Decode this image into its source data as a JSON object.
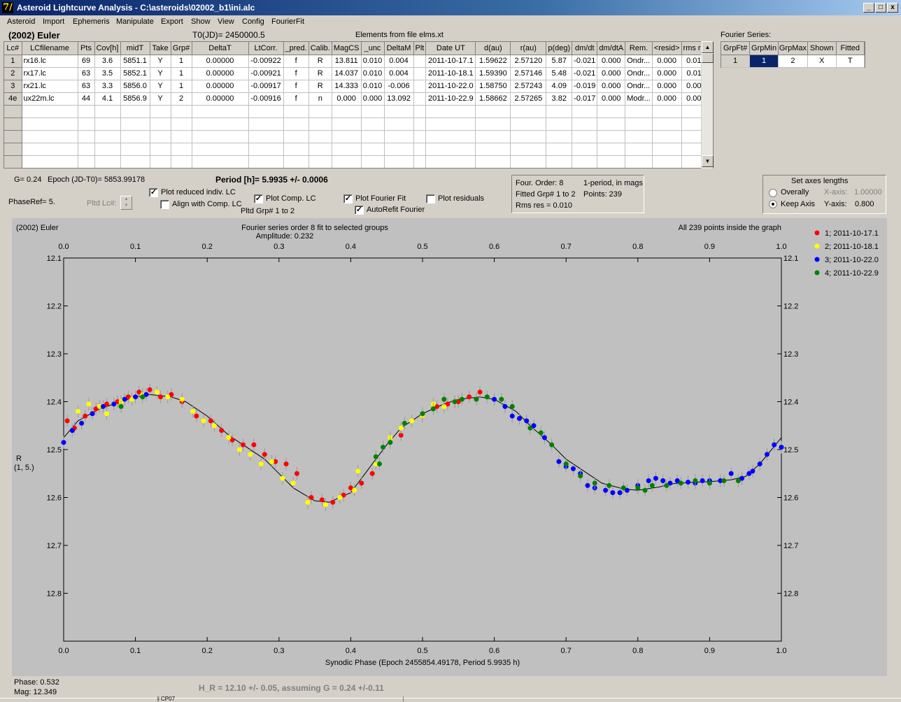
{
  "window": {
    "title": "Asteroid Lightcurve Analysis - C:\\asteroids\\02002_b1\\ini.alc",
    "icon_glyph": "7/",
    "buttons": [
      "_",
      "□",
      "x"
    ]
  },
  "menu": [
    "Asteroid",
    "Import",
    "Ephemeris",
    "Manipulate",
    "Export",
    "Show",
    "View",
    "Config",
    "FourierFit"
  ],
  "header": {
    "asteroid": "(2002) Euler",
    "t0": "T0(JD)= 2450000.5",
    "elements": "Elements from file elms.xt"
  },
  "grid": {
    "columns": [
      "Lc#",
      "LCfilename",
      "Pts",
      "Cov[h]",
      "midT",
      "Take",
      "Grp#",
      "DeltaT",
      "LtCorr.",
      "_pred.",
      "Calib.",
      "MagCS",
      "_unc",
      "DeltaM",
      "Plt",
      "Date UT",
      "d(au)",
      "r(au)",
      "p(deg)",
      "dm/dt",
      "dm/dtA",
      "Rem.",
      "<resid>",
      "rms res"
    ],
    "rows": [
      [
        "1",
        "rx16.lc",
        "69",
        "3.6",
        "5851.1",
        "Y",
        "1",
        "0.00000",
        "-0.00922",
        "f",
        "R",
        "13.811",
        "0.010",
        "0.004",
        "",
        "2011-10-17.1",
        "1.59622",
        "2.57120",
        "5.87",
        "-0.021",
        "0.000",
        "Ondr...",
        "0.000",
        "0.010"
      ],
      [
        "2",
        "rx17.lc",
        "63",
        "3.5",
        "5852.1",
        "Y",
        "1",
        "0.00000",
        "-0.00921",
        "f",
        "R",
        "14.037",
        "0.010",
        "0.004",
        "",
        "2011-10-18.1",
        "1.59390",
        "2.57146",
        "5.48",
        "-0.021",
        "0.000",
        "Ondr...",
        "0.000",
        "0.011"
      ],
      [
        "3",
        "rx21.lc",
        "63",
        "3.3",
        "5856.0",
        "Y",
        "1",
        "0.00000",
        "-0.00917",
        "f",
        "R",
        "14.333",
        "0.010",
        "-0.006",
        "",
        "2011-10-22.0",
        "1.58750",
        "2.57243",
        "4.09",
        "-0.019",
        "0.000",
        "Ondr...",
        "0.000",
        "0.007"
      ],
      [
        "4e",
        "ux22m.lc",
        "44",
        "4.1",
        "5856.9",
        "Y",
        "2",
        "0.00000",
        "-0.00916",
        "f",
        "n",
        "0.000",
        "0.000",
        "13.092",
        "",
        "2011-10-22.9",
        "1.58662",
        "2.57265",
        "3.82",
        "-0.017",
        "0.000",
        "Modr...",
        "0.000",
        "0.007"
      ]
    ],
    "empty_rows": 5
  },
  "fourier_series": {
    "label": "Fourier Series:",
    "columns": [
      "GrpFt#",
      "GrpMin",
      "GrpMax",
      "Shown",
      "Fitted"
    ],
    "row": [
      "1",
      "1",
      "2",
      "X",
      "T"
    ]
  },
  "params": {
    "g": "G= 0.24",
    "epoch": "Epoch (JD-T0)= 5853.99178",
    "period": "Period [h]= 5.9935 +/- 0.0006",
    "phaseref": "PhaseRef= 5.",
    "pltd_lc": "Pltd Lc#:",
    "plot_reduced": "Plot reduced indiv. LC",
    "align_comp": "Align with Comp. LC",
    "plot_comp": "Plot Comp. LC",
    "pltd_grp": "Pltd Grp#  1   to    2",
    "plot_fourier": "Plot Fourier Fit",
    "autorefit": "AutoRefit Fourier",
    "plot_residuals": "Plot residuals",
    "checked": "✓"
  },
  "info_box": {
    "order": "Four. Order:  8",
    "period_mode": "1-period, in mags",
    "fitted": "Fitted Grp# 1 to 2",
    "points": "Points: 239",
    "rms": "Rms res    = 0.010"
  },
  "axes_box": {
    "title": "Set axes lengths",
    "overally": "Overally",
    "keep_axis": "Keep Axis",
    "xaxis_label": "X-axis:",
    "xaxis_value": "1.00000",
    "yaxis_label": "Y-axis:",
    "yaxis_value": "0.800"
  },
  "footer": {
    "phase": "Phase:  0.532",
    "mag": "Mag:    12.349",
    "h_r": "H_R = 12.10 +/- 0.05, assuming G = 0.24 +/-0.11",
    "taskbar_fragment": "i CP07"
  },
  "chart_data": {
    "type": "scatter",
    "title": "Fourier series order 8 fit to selected groups",
    "subtitle": "Amplitude: 0.232",
    "corner_label": "(2002) Euler",
    "info_right": "All 239 points inside the graph",
    "xlabel": "Synodic Phase (Epoch 2455854.49178, Period 5.9935 h)",
    "ylabel": "R",
    "ylabel2": "(1, 5.)",
    "xlim": [
      0.0,
      1.0
    ],
    "ylim": [
      12.1,
      12.9
    ],
    "y_inverted": true,
    "xticks": [
      "0.0",
      "0.1",
      "0.2",
      "0.3",
      "0.4",
      "0.5",
      "0.6",
      "0.7",
      "0.8",
      "0.9",
      "1.0"
    ],
    "yticks": [
      "12.1",
      "12.2",
      "12.3",
      "12.4",
      "12.5",
      "12.6",
      "12.7",
      "12.8"
    ],
    "legend_position": "right",
    "fit_curve": {
      "color": "#000000",
      "x": [
        0.0,
        0.02,
        0.05,
        0.08,
        0.1,
        0.12,
        0.15,
        0.17,
        0.2,
        0.23,
        0.25,
        0.28,
        0.3,
        0.32,
        0.35,
        0.37,
        0.4,
        0.42,
        0.45,
        0.47,
        0.5,
        0.53,
        0.55,
        0.58,
        0.6,
        0.63,
        0.65,
        0.68,
        0.7,
        0.73,
        0.75,
        0.78,
        0.8,
        0.83,
        0.85,
        0.88,
        0.9,
        0.93,
        0.95,
        0.97,
        1.0
      ],
      "y": [
        12.475,
        12.44,
        12.415,
        12.4,
        12.39,
        12.385,
        12.39,
        12.4,
        12.43,
        12.47,
        12.49,
        12.52,
        12.55,
        12.58,
        12.607,
        12.61,
        12.59,
        12.55,
        12.49,
        12.455,
        12.425,
        12.405,
        12.395,
        12.39,
        12.395,
        12.42,
        12.45,
        12.49,
        12.52,
        12.55,
        12.57,
        12.582,
        12.585,
        12.578,
        12.571,
        12.568,
        12.567,
        12.563,
        12.556,
        12.53,
        12.475
      ]
    },
    "series": [
      {
        "name": "1; 2011-10-17.1",
        "color": "#ff0000",
        "x": [
          0.005,
          0.015,
          0.03,
          0.045,
          0.06,
          0.075,
          0.09,
          0.105,
          0.12,
          0.135,
          0.15,
          0.165,
          0.185,
          0.205,
          0.22,
          0.235,
          0.25,
          0.265,
          0.28,
          0.295,
          0.31,
          0.325,
          0.345,
          0.36,
          0.375,
          0.39,
          0.4,
          0.415,
          0.43,
          0.47,
          0.5,
          0.52,
          0.535,
          0.55,
          0.565,
          0.58
        ],
        "y": [
          12.44,
          12.455,
          12.43,
          12.415,
          12.405,
          12.4,
          12.39,
          12.38,
          12.375,
          12.39,
          12.385,
          12.4,
          12.43,
          12.44,
          12.46,
          12.48,
          12.49,
          12.49,
          12.51,
          12.525,
          12.53,
          12.55,
          12.6,
          12.605,
          12.61,
          12.595,
          12.58,
          12.57,
          12.55,
          12.47,
          12.43,
          12.41,
          12.405,
          12.4,
          12.39,
          12.38
        ]
      },
      {
        "name": "2; 2011-10-18.1",
        "color": "#ffff00",
        "x": [
          0.02,
          0.035,
          0.05,
          0.06,
          0.08,
          0.095,
          0.11,
          0.13,
          0.145,
          0.165,
          0.18,
          0.195,
          0.21,
          0.23,
          0.245,
          0.26,
          0.275,
          0.29,
          0.305,
          0.32,
          0.34,
          0.365,
          0.385,
          0.405,
          0.41,
          0.435,
          0.455,
          0.47,
          0.485,
          0.5,
          0.515,
          0.53,
          0.545
        ],
        "y": [
          12.42,
          12.405,
          12.41,
          12.425,
          12.4,
          12.395,
          12.385,
          12.38,
          12.39,
          12.395,
          12.42,
          12.44,
          12.45,
          12.475,
          12.5,
          12.51,
          12.53,
          12.525,
          12.56,
          12.57,
          12.61,
          12.615,
          12.6,
          12.585,
          12.545,
          12.53,
          12.475,
          12.455,
          12.44,
          12.43,
          12.405,
          12.41,
          12.4
        ]
      },
      {
        "name": "3; 2011-10-22.0",
        "color": "#0000ff",
        "x": [
          0.0,
          0.012,
          0.025,
          0.04,
          0.055,
          0.07,
          0.085,
          0.1,
          0.115,
          0.6,
          0.615,
          0.625,
          0.635,
          0.645,
          0.655,
          0.67,
          0.69,
          0.7,
          0.71,
          0.72,
          0.73,
          0.74,
          0.755,
          0.765,
          0.775,
          0.785,
          0.8,
          0.815,
          0.825,
          0.835,
          0.845,
          0.855,
          0.87,
          0.88,
          0.89,
          0.9,
          0.915,
          0.93,
          0.945,
          0.955,
          0.96,
          0.97,
          0.98,
          0.99,
          1.0
        ],
        "y": [
          12.485,
          12.46,
          12.445,
          12.425,
          12.41,
          12.405,
          12.395,
          12.39,
          12.385,
          12.395,
          12.41,
          12.43,
          12.435,
          12.44,
          12.45,
          12.475,
          12.525,
          12.535,
          12.54,
          12.55,
          12.575,
          12.58,
          12.585,
          12.59,
          12.59,
          12.585,
          12.575,
          12.565,
          12.56,
          12.565,
          12.57,
          12.565,
          12.568,
          12.57,
          12.565,
          12.565,
          12.565,
          12.55,
          12.56,
          12.55,
          12.545,
          12.53,
          12.51,
          12.49,
          12.495
        ]
      },
      {
        "name": "4; 2011-10-22.9",
        "color": "#008000",
        "x": [
          0.08,
          0.11,
          0.435,
          0.44,
          0.445,
          0.455,
          0.475,
          0.5,
          0.515,
          0.53,
          0.545,
          0.555,
          0.575,
          0.59,
          0.61,
          0.625,
          0.65,
          0.665,
          0.68,
          0.7,
          0.72,
          0.74,
          0.76,
          0.78,
          0.8,
          0.81,
          0.82,
          0.84,
          0.86,
          0.88,
          0.9,
          0.92,
          0.94
        ],
        "y": [
          12.41,
          12.39,
          12.515,
          12.53,
          12.495,
          12.485,
          12.445,
          12.425,
          12.415,
          12.395,
          12.4,
          12.395,
          12.395,
          12.39,
          12.395,
          12.41,
          12.455,
          12.465,
          12.49,
          12.53,
          12.555,
          12.57,
          12.575,
          12.58,
          12.58,
          12.585,
          12.575,
          12.575,
          12.57,
          12.565,
          12.57,
          12.565,
          12.565
        ]
      }
    ]
  }
}
